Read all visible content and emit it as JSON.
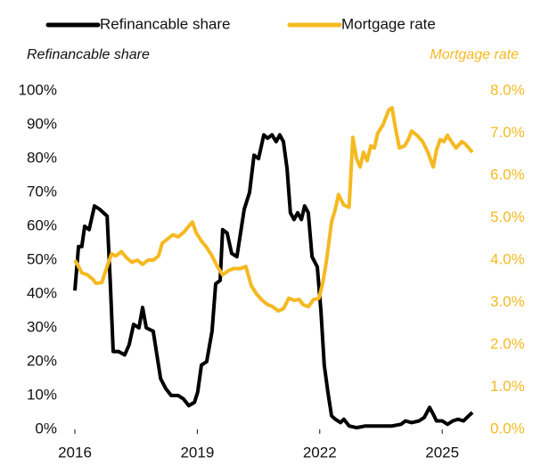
{
  "chart_data": {
    "type": "line",
    "ylabel": "Refinancable share",
    "y2label": "Mortgage rate",
    "xlim": [
      2016,
      2025.75
    ],
    "xticks": [
      2016,
      2019,
      2022,
      2025
    ],
    "ylim": [
      0,
      100
    ],
    "yticks": [
      {
        "value": 0,
        "label": "0%"
      },
      {
        "value": 10,
        "label": "10%"
      },
      {
        "value": 20,
        "label": "20%"
      },
      {
        "value": 30,
        "label": "30%"
      },
      {
        "value": 40,
        "label": "40%"
      },
      {
        "value": 50,
        "label": "50%"
      },
      {
        "value": 60,
        "label": "60%"
      },
      {
        "value": 70,
        "label": "70%"
      },
      {
        "value": 80,
        "label": "80%"
      },
      {
        "value": 90,
        "label": "90%"
      },
      {
        "value": 100,
        "label": "100%"
      }
    ],
    "y2lim": [
      0,
      8
    ],
    "y2ticks": [
      {
        "value": 0,
        "label": "0.0%"
      },
      {
        "value": 1,
        "label": "1.0%"
      },
      {
        "value": 2,
        "label": "2.0%"
      },
      {
        "value": 3,
        "label": "3.0%"
      },
      {
        "value": 4,
        "label": "4.0%"
      },
      {
        "value": 5,
        "label": "5.0%"
      },
      {
        "value": 6,
        "label": "6.0%"
      },
      {
        "value": 7,
        "label": "7.0%"
      },
      {
        "value": 8,
        "label": "8.0%"
      }
    ],
    "series": [
      {
        "name": "Refinancable share",
        "color": "#000000",
        "axis": "y",
        "x": [
          2016,
          2016.09,
          2016.17,
          2016.24,
          2016.35,
          2016.48,
          2016.61,
          2016.79,
          2016.87,
          2016.94,
          2017.07,
          2017.22,
          2017.33,
          2017.44,
          2017.57,
          2017.66,
          2017.75,
          2017.92,
          2018.1,
          2018.23,
          2018.36,
          2018.53,
          2018.66,
          2018.79,
          2018.93,
          2019.01,
          2019.1,
          2019.23,
          2019.36,
          2019.45,
          2019.56,
          2019.62,
          2019.73,
          2019.84,
          2019.97,
          2020.15,
          2020.28,
          2020.39,
          2020.5,
          2020.63,
          2020.72,
          2020.83,
          2020.93,
          2021.02,
          2021.11,
          2021.2,
          2021.28,
          2021.37,
          2021.46,
          2021.55,
          2021.63,
          2021.72,
          2021.81,
          2021.94,
          2022.03,
          2022.11,
          2022.2,
          2022.29,
          2022.38,
          2022.51,
          2022.59,
          2022.72,
          2022.9,
          2023.12,
          2023.34,
          2023.55,
          2023.77,
          2023.99,
          2024.1,
          2024.25,
          2024.43,
          2024.56,
          2024.69,
          2024.78,
          2024.86,
          2025.0,
          2025.13,
          2025.26,
          2025.39,
          2025.52,
          2025.65,
          2025.74
        ],
        "values": [
          41,
          54,
          54,
          60,
          59,
          66,
          65,
          63,
          43,
          23,
          23,
          22,
          25,
          31,
          30,
          36,
          30,
          29,
          15,
          12,
          10,
          10,
          9,
          7,
          8,
          11,
          19,
          20,
          29,
          43,
          44,
          59,
          58,
          52,
          51,
          65,
          70,
          81,
          80,
          87,
          86,
          87,
          85,
          87,
          85,
          77,
          64,
          62,
          64,
          62,
          66,
          64,
          51,
          48,
          35,
          19,
          11,
          4,
          3,
          2,
          3,
          1,
          0.5,
          1,
          1,
          1,
          1,
          1.5,
          2.5,
          2,
          2.5,
          3.5,
          6.5,
          4.5,
          2.5,
          2.5,
          1.5,
          2.5,
          3,
          2.5,
          4,
          5
        ]
      },
      {
        "name": "Mortgage rate",
        "color": "#f5b921",
        "axis": "y2",
        "x": [
          2016,
          2016.09,
          2016.17,
          2016.31,
          2016.44,
          2016.52,
          2016.66,
          2016.79,
          2016.9,
          2017.0,
          2017.14,
          2017.27,
          2017.4,
          2017.53,
          2017.66,
          2017.79,
          2017.92,
          2018.05,
          2018.14,
          2018.27,
          2018.4,
          2018.53,
          2018.66,
          2018.79,
          2018.88,
          2018.97,
          2019.1,
          2019.23,
          2019.36,
          2019.49,
          2019.62,
          2019.76,
          2019.89,
          2020.06,
          2020.19,
          2020.32,
          2020.45,
          2020.59,
          2020.72,
          2020.85,
          2020.98,
          2021.11,
          2021.24,
          2021.37,
          2021.5,
          2021.59,
          2021.72,
          2021.85,
          2021.98,
          2022.07,
          2022.16,
          2022.29,
          2022.38,
          2022.46,
          2022.59,
          2022.72,
          2022.81,
          2022.9,
          2022.99,
          2023.07,
          2023.16,
          2023.25,
          2023.34,
          2023.42,
          2023.55,
          2023.69,
          2023.77,
          2023.86,
          2023.95,
          2024.08,
          2024.17,
          2024.25,
          2024.38,
          2024.52,
          2024.65,
          2024.78,
          2024.86,
          2024.95,
          2025.04,
          2025.13,
          2025.26,
          2025.34,
          2025.48,
          2025.56,
          2025.65,
          2025.74
        ],
        "values": [
          4.0,
          3.85,
          3.7,
          3.65,
          3.55,
          3.45,
          3.47,
          3.85,
          4.15,
          4.1,
          4.2,
          4.05,
          3.95,
          4.0,
          3.9,
          4.0,
          4.0,
          4.1,
          4.4,
          4.5,
          4.6,
          4.55,
          4.65,
          4.8,
          4.9,
          4.65,
          4.45,
          4.3,
          4.1,
          3.85,
          3.65,
          3.75,
          3.8,
          3.8,
          3.85,
          3.4,
          3.2,
          3.05,
          2.95,
          2.9,
          2.8,
          2.85,
          3.1,
          3.05,
          3.07,
          2.95,
          2.9,
          3.07,
          3.1,
          3.45,
          3.95,
          4.9,
          5.2,
          5.55,
          5.3,
          5.25,
          6.9,
          6.4,
          6.2,
          6.55,
          6.35,
          6.7,
          6.65,
          7.0,
          7.2,
          7.55,
          7.6,
          7.1,
          6.65,
          6.7,
          6.85,
          7.05,
          6.95,
          6.8,
          6.55,
          6.2,
          6.6,
          6.85,
          6.8,
          6.95,
          6.75,
          6.65,
          6.8,
          6.75,
          6.65,
          6.55
        ]
      }
    ]
  }
}
